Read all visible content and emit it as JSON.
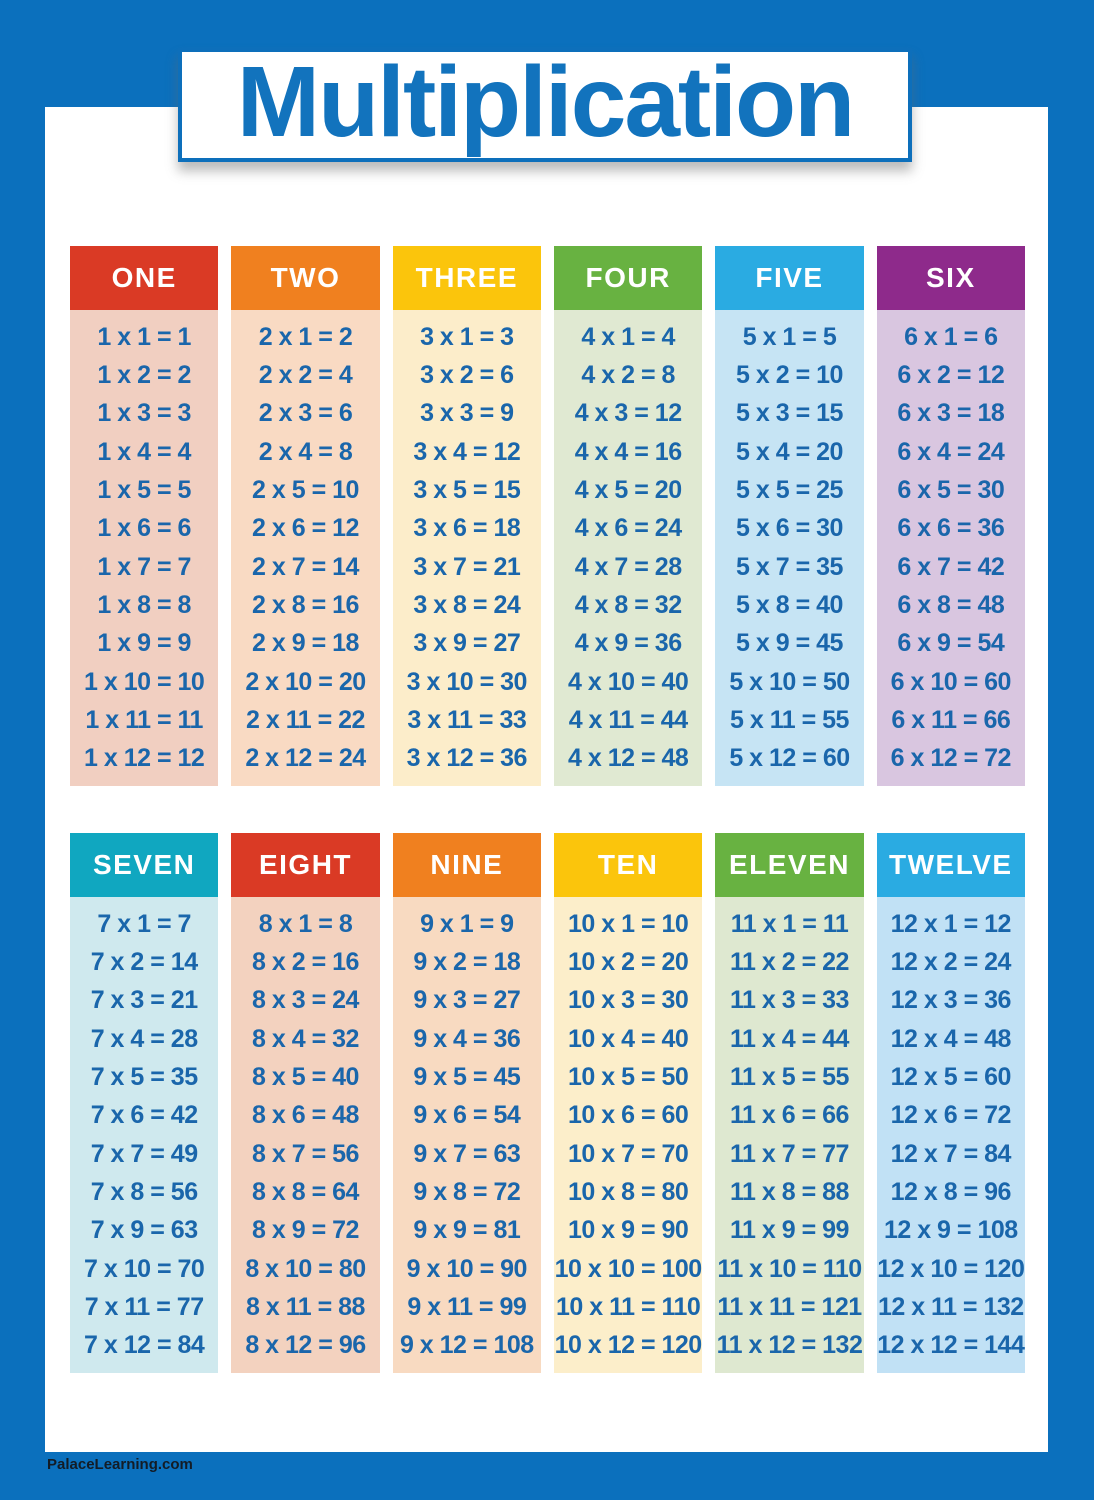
{
  "title": "Multiplication",
  "footer": {
    "brand": "PalaceLearning.com"
  },
  "colors": {
    "poster_blue": "#0b70bd",
    "title_blue": "#1273bd",
    "title_border_blue": "#0d6fbb",
    "fact_text_blue": "#1a66ab",
    "header_text_white": "#ffffff",
    "footer_text": "#131c26"
  },
  "tables": [
    {
      "label": "ONE",
      "header_color": "#da3a25",
      "body_color": "#f1cfc1",
      "facts": [
        "1 x 1 = 1",
        "1 x 2 = 2",
        "1 x 3 = 3",
        "1 x 4 = 4",
        "1 x 5 = 5",
        "1 x 6 = 6",
        "1 x 7 = 7",
        "1 x 8 = 8",
        "1 x 9 = 9",
        "1 x 10 = 10",
        "1 x 11 = 11",
        "1 x 12 = 12"
      ]
    },
    {
      "label": "TWO",
      "header_color": "#f0801f",
      "body_color": "#f9dac3",
      "facts": [
        "2 x 1 = 2",
        "2 x 2 = 4",
        "2 x 3 = 6",
        "2 x 4 = 8",
        "2 x 5 = 10",
        "2 x 6 = 12",
        "2 x 7 = 14",
        "2 x 8 = 16",
        "2 x 9 = 18",
        "2 x 10 = 20",
        "2 x 11 = 22",
        "2 x 12 = 24"
      ]
    },
    {
      "label": "THREE",
      "header_color": "#fbc50c",
      "body_color": "#fcedca",
      "facts": [
        "3 x 1 = 3",
        "3 x 2 = 6",
        "3 x 3 = 9",
        "3 x 4 = 12",
        "3 x 5 = 15",
        "3 x 6 = 18",
        "3 x 7 = 21",
        "3 x 8 = 24",
        "3 x 9 = 27",
        "3 x 10 = 30",
        "3 x 11 = 33",
        "3 x 12 = 36"
      ]
    },
    {
      "label": "FOUR",
      "header_color": "#68b241",
      "body_color": "#e0e9d2",
      "facts": [
        "4 x 1 = 4",
        "4 x 2 = 8",
        "4 x 3 = 12",
        "4 x 4 = 16",
        "4 x 5 = 20",
        "4 x 6 = 24",
        "4 x 7 = 28",
        "4 x 8 = 32",
        "4 x 9 = 36",
        "4 x 10 = 40",
        "4 x 11 = 44",
        "4 x 12 = 48"
      ]
    },
    {
      "label": "FIVE",
      "header_color": "#2aabe2",
      "body_color": "#c6e4f4",
      "facts": [
        "5 x 1 = 5",
        "5 x 2 = 10",
        "5 x 3 = 15",
        "5 x 4 = 20",
        "5 x 5 = 25",
        "5 x 6 = 30",
        "5 x 7 = 35",
        "5 x 8 = 40",
        "5 x 9 = 45",
        "5 x 10 = 50",
        "5 x 11 = 55",
        "5 x 12 = 60"
      ]
    },
    {
      "label": "SIX",
      "header_color": "#8e2a8b",
      "body_color": "#d9c6e0",
      "facts": [
        "6 x 1 = 6",
        "6 x 2 = 12",
        "6 x 3 = 18",
        "6 x 4 = 24",
        "6 x 5 = 30",
        "6 x 6 = 36",
        "6 x 7 = 42",
        "6 x 8 = 48",
        "6 x 9 = 54",
        "6 x 10 = 60",
        "6 x 11 = 66",
        "6 x 12 = 72"
      ]
    },
    {
      "label": "SEVEN",
      "header_color": "#10a7c0",
      "body_color": "#cfe9ee",
      "facts": [
        "7 x 1 = 7",
        "7 x 2 = 14",
        "7 x 3 = 21",
        "7 x 4 = 28",
        "7 x 5 = 35",
        "7 x 6 = 42",
        "7 x 7 = 49",
        "7 x 8 = 56",
        "7 x 9 = 63",
        "7 x 10 = 70",
        "7 x 11 = 77",
        "7 x 12 = 84"
      ]
    },
    {
      "label": "EIGHT",
      "header_color": "#da3a25",
      "body_color": "#f3d2bf",
      "facts": [
        "8 x 1 = 8",
        "8 x 2 = 16",
        "8 x 3 = 24",
        "8 x 4 = 32",
        "8 x 5 = 40",
        "8 x 6 = 48",
        "8 x 7 = 56",
        "8 x 8 = 64",
        "8 x 9 = 72",
        "8 x 10 = 80",
        "8 x 11 = 88",
        "8 x 12 = 96"
      ]
    },
    {
      "label": "NINE",
      "header_color": "#f0801f",
      "body_color": "#f8dac1",
      "facts": [
        "9 x 1 = 9",
        "9 x 2 = 18",
        "9 x 3 = 27",
        "9 x 4 = 36",
        "9 x 5 = 45",
        "9 x 6 = 54",
        "9 x 7 = 63",
        "9 x 8 = 72",
        "9 x 9 = 81",
        "9 x 10 = 90",
        "9 x 11 = 99",
        "9 x 12 = 108"
      ]
    },
    {
      "label": "TEN",
      "header_color": "#fbc50c",
      "body_color": "#fceeca",
      "facts": [
        "10 x 1 = 10",
        "10 x 2 = 20",
        "10 x 3 = 30",
        "10 x 4 = 40",
        "10 x 5 = 50",
        "10 x 6 = 60",
        "10 x 7 = 70",
        "10 x 8 = 80",
        "10 x 9 = 90",
        "10 x 10 = 100",
        "10 x 11 = 110",
        "10 x 12 = 120"
      ]
    },
    {
      "label": "ELEVEN",
      "header_color": "#68b241",
      "body_color": "#dee8d0",
      "facts": [
        "11 x 1 = 11",
        "11 x 2 = 22",
        "11 x 3 = 33",
        "11 x 4 = 44",
        "11 x 5 = 55",
        "11 x 6 = 66",
        "11 x 7 = 77",
        "11 x 8 = 88",
        "11 x 9 = 99",
        "11 x 10 = 110",
        "11 x 11 = 121",
        "11 x 12 = 132"
      ]
    },
    {
      "label": "TWELVE",
      "header_color": "#2aabe2",
      "body_color": "#c1e1f5",
      "facts": [
        "12 x 1 = 12",
        "12 x 2 = 24",
        "12 x 3 = 36",
        "12 x 4 = 48",
        "12 x 5 = 60",
        "12 x 6 = 72",
        "12 x 7 = 84",
        "12 x 8 = 96",
        "12 x 9 = 108",
        "12 x 10 = 120",
        "12 x 11 = 132",
        "12 x 12 = 144"
      ]
    }
  ]
}
